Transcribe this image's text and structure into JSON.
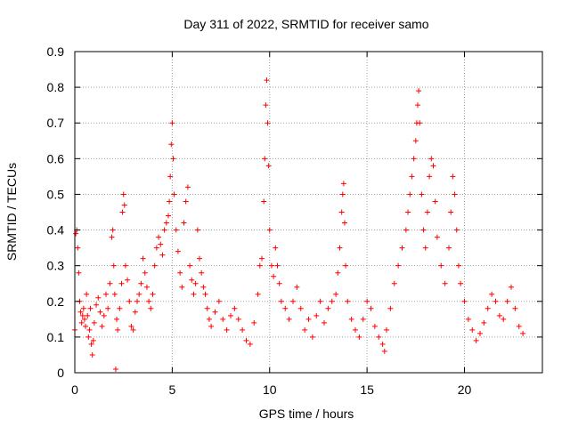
{
  "chart_data": {
    "type": "scatter",
    "title": "Day 311 of 2022, SRMTID for receiver samo",
    "xlabel": "GPS time / hours",
    "ylabel": "SRMTID / TECUs",
    "xlim": [
      0,
      24
    ],
    "ylim": [
      0,
      0.9
    ],
    "xticks": [
      0,
      5,
      10,
      15,
      20
    ],
    "yticks": [
      0,
      0.1,
      0.2,
      0.3,
      0.4,
      0.5,
      0.6,
      0.7,
      0.8,
      0.9
    ],
    "xtick_labels": [
      "0",
      "5",
      "10",
      "15",
      "20"
    ],
    "ytick_labels": [
      "0",
      "0.1",
      "0.2",
      "0.3",
      "0.4",
      "0.5",
      "0.6",
      "0.7",
      "0.8",
      "0.9"
    ],
    "grid": true,
    "marker": "+",
    "color": "#ff0000",
    "series": [
      {
        "name": "SRMTID",
        "points": [
          [
            0.0,
            0.12
          ],
          [
            0.05,
            0.39
          ],
          [
            0.1,
            0.4
          ],
          [
            0.15,
            0.35
          ],
          [
            0.2,
            0.28
          ],
          [
            0.25,
            0.2
          ],
          [
            0.3,
            0.17
          ],
          [
            0.35,
            0.14
          ],
          [
            0.4,
            0.16
          ],
          [
            0.45,
            0.18
          ],
          [
            0.5,
            0.15
          ],
          [
            0.55,
            0.13
          ],
          [
            0.6,
            0.22
          ],
          [
            0.65,
            0.16
          ],
          [
            0.7,
            0.1
          ],
          [
            0.75,
            0.12
          ],
          [
            0.8,
            0.18
          ],
          [
            0.85,
            0.08
          ],
          [
            0.9,
            0.05
          ],
          [
            0.95,
            0.09
          ],
          [
            1.0,
            0.14
          ],
          [
            1.1,
            0.19
          ],
          [
            1.2,
            0.21
          ],
          [
            1.3,
            0.17
          ],
          [
            1.4,
            0.13
          ],
          [
            1.5,
            0.16
          ],
          [
            1.6,
            0.22
          ],
          [
            1.7,
            0.18
          ],
          [
            1.8,
            0.25
          ],
          [
            1.9,
            0.38
          ],
          [
            1.95,
            0.4
          ],
          [
            2.0,
            0.3
          ],
          [
            2.05,
            0.22
          ],
          [
            2.1,
            0.01
          ],
          [
            2.15,
            0.15
          ],
          [
            2.2,
            0.12
          ],
          [
            2.3,
            0.18
          ],
          [
            2.4,
            0.25
          ],
          [
            2.45,
            0.45
          ],
          [
            2.5,
            0.5
          ],
          [
            2.55,
            0.47
          ],
          [
            2.6,
            0.3
          ],
          [
            2.7,
            0.26
          ],
          [
            2.8,
            0.2
          ],
          [
            2.9,
            0.13
          ],
          [
            3.0,
            0.12
          ],
          [
            3.1,
            0.17
          ],
          [
            3.2,
            0.2
          ],
          [
            3.3,
            0.22
          ],
          [
            3.4,
            0.25
          ],
          [
            3.5,
            0.32
          ],
          [
            3.6,
            0.28
          ],
          [
            3.7,
            0.24
          ],
          [
            3.8,
            0.2
          ],
          [
            3.9,
            0.18
          ],
          [
            4.0,
            0.22
          ],
          [
            4.1,
            0.3
          ],
          [
            4.2,
            0.35
          ],
          [
            4.3,
            0.38
          ],
          [
            4.4,
            0.36
          ],
          [
            4.5,
            0.33
          ],
          [
            4.6,
            0.4
          ],
          [
            4.7,
            0.42
          ],
          [
            4.8,
            0.44
          ],
          [
            4.85,
            0.48
          ],
          [
            4.9,
            0.55
          ],
          [
            4.95,
            0.64
          ],
          [
            5.0,
            0.7
          ],
          [
            5.05,
            0.6
          ],
          [
            5.1,
            0.5
          ],
          [
            5.2,
            0.4
          ],
          [
            5.3,
            0.34
          ],
          [
            5.4,
            0.28
          ],
          [
            5.5,
            0.24
          ],
          [
            5.6,
            0.42
          ],
          [
            5.7,
            0.48
          ],
          [
            5.8,
            0.52
          ],
          [
            5.9,
            0.3
          ],
          [
            6.0,
            0.26
          ],
          [
            6.1,
            0.22
          ],
          [
            6.2,
            0.25
          ],
          [
            6.3,
            0.4
          ],
          [
            6.4,
            0.32
          ],
          [
            6.5,
            0.28
          ],
          [
            6.6,
            0.24
          ],
          [
            6.7,
            0.22
          ],
          [
            6.8,
            0.18
          ],
          [
            6.9,
            0.15
          ],
          [
            7.0,
            0.13
          ],
          [
            7.2,
            0.17
          ],
          [
            7.4,
            0.2
          ],
          [
            7.6,
            0.15
          ],
          [
            7.8,
            0.12
          ],
          [
            8.0,
            0.16
          ],
          [
            8.2,
            0.18
          ],
          [
            8.4,
            0.15
          ],
          [
            8.6,
            0.12
          ],
          [
            8.8,
            0.09
          ],
          [
            9.0,
            0.08
          ],
          [
            9.2,
            0.14
          ],
          [
            9.4,
            0.22
          ],
          [
            9.5,
            0.3
          ],
          [
            9.6,
            0.32
          ],
          [
            9.7,
            0.48
          ],
          [
            9.75,
            0.6
          ],
          [
            9.8,
            0.75
          ],
          [
            9.85,
            0.82
          ],
          [
            9.9,
            0.7
          ],
          [
            9.95,
            0.58
          ],
          [
            10.0,
            0.4
          ],
          [
            10.1,
            0.3
          ],
          [
            10.2,
            0.27
          ],
          [
            10.3,
            0.35
          ],
          [
            10.4,
            0.3
          ],
          [
            10.5,
            0.25
          ],
          [
            10.6,
            0.2
          ],
          [
            10.8,
            0.18
          ],
          [
            11.0,
            0.15
          ],
          [
            11.2,
            0.2
          ],
          [
            11.4,
            0.24
          ],
          [
            11.6,
            0.18
          ],
          [
            11.8,
            0.12
          ],
          [
            12.0,
            0.15
          ],
          [
            12.2,
            0.1
          ],
          [
            12.4,
            0.16
          ],
          [
            12.6,
            0.2
          ],
          [
            12.8,
            0.14
          ],
          [
            13.0,
            0.18
          ],
          [
            13.2,
            0.2
          ],
          [
            13.4,
            0.22
          ],
          [
            13.5,
            0.28
          ],
          [
            13.6,
            0.35
          ],
          [
            13.7,
            0.45
          ],
          [
            13.75,
            0.5
          ],
          [
            13.8,
            0.53
          ],
          [
            13.85,
            0.42
          ],
          [
            13.9,
            0.3
          ],
          [
            14.0,
            0.2
          ],
          [
            14.2,
            0.15
          ],
          [
            14.4,
            0.12
          ],
          [
            14.6,
            0.1
          ],
          [
            14.8,
            0.15
          ],
          [
            15.0,
            0.2
          ],
          [
            15.2,
            0.18
          ],
          [
            15.4,
            0.13
          ],
          [
            15.6,
            0.1
          ],
          [
            15.8,
            0.08
          ],
          [
            15.9,
            0.06
          ],
          [
            16.0,
            0.12
          ],
          [
            16.2,
            0.18
          ],
          [
            16.4,
            0.25
          ],
          [
            16.6,
            0.3
          ],
          [
            16.8,
            0.35
          ],
          [
            17.0,
            0.4
          ],
          [
            17.1,
            0.45
          ],
          [
            17.2,
            0.5
          ],
          [
            17.3,
            0.55
          ],
          [
            17.4,
            0.6
          ],
          [
            17.5,
            0.65
          ],
          [
            17.55,
            0.7
          ],
          [
            17.6,
            0.75
          ],
          [
            17.65,
            0.79
          ],
          [
            17.7,
            0.7
          ],
          [
            17.8,
            0.5
          ],
          [
            17.9,
            0.4
          ],
          [
            18.0,
            0.35
          ],
          [
            18.1,
            0.45
          ],
          [
            18.2,
            0.55
          ],
          [
            18.3,
            0.6
          ],
          [
            18.4,
            0.58
          ],
          [
            18.5,
            0.48
          ],
          [
            18.6,
            0.38
          ],
          [
            18.8,
            0.3
          ],
          [
            19.0,
            0.25
          ],
          [
            19.2,
            0.35
          ],
          [
            19.3,
            0.45
          ],
          [
            19.4,
            0.55
          ],
          [
            19.5,
            0.5
          ],
          [
            19.6,
            0.4
          ],
          [
            19.7,
            0.3
          ],
          [
            19.8,
            0.25
          ],
          [
            20.0,
            0.2
          ],
          [
            20.2,
            0.15
          ],
          [
            20.4,
            0.12
          ],
          [
            20.6,
            0.09
          ],
          [
            20.8,
            0.11
          ],
          [
            21.0,
            0.14
          ],
          [
            21.2,
            0.18
          ],
          [
            21.4,
            0.22
          ],
          [
            21.6,
            0.2
          ],
          [
            21.8,
            0.16
          ],
          [
            22.0,
            0.15
          ],
          [
            22.2,
            0.2
          ],
          [
            22.4,
            0.24
          ],
          [
            22.6,
            0.18
          ],
          [
            22.8,
            0.13
          ],
          [
            23.0,
            0.11
          ]
        ]
      }
    ]
  }
}
